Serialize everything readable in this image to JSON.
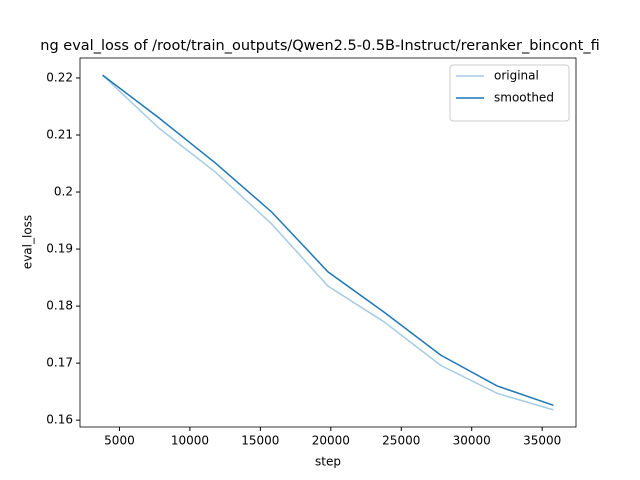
{
  "chart_data": {
    "type": "line",
    "title": "ng eval_loss of /root/train_outputs/Qwen2.5-0.5B-Instruct/reranker_bincont_fi",
    "x_label": "step",
    "y_label": "eval_loss",
    "x": [
      3800,
      7800,
      11800,
      15800,
      19800,
      23800,
      27800,
      31800,
      35800
    ],
    "series": [
      {
        "name": "original",
        "color": "#a6cbe3",
        "values": [
          0.2205,
          0.2112,
          0.2035,
          0.1944,
          0.1835,
          0.1772,
          0.1696,
          0.1647,
          0.1618
        ]
      },
      {
        "name": "smoothed",
        "color": "#1f77b4",
        "values": [
          0.2205,
          0.213,
          0.2051,
          0.1965,
          0.186,
          0.1789,
          0.1714,
          0.166,
          0.1626
        ]
      }
    ],
    "xlim": [
      2200,
      37400
    ],
    "ylim": [
      0.1588,
      0.2235
    ],
    "xticks": [
      5000,
      10000,
      15000,
      20000,
      25000,
      30000,
      35000
    ],
    "yticks": [
      0.16,
      0.17,
      0.18,
      0.19,
      0.2,
      0.21,
      0.22
    ],
    "legend": "upper right"
  }
}
